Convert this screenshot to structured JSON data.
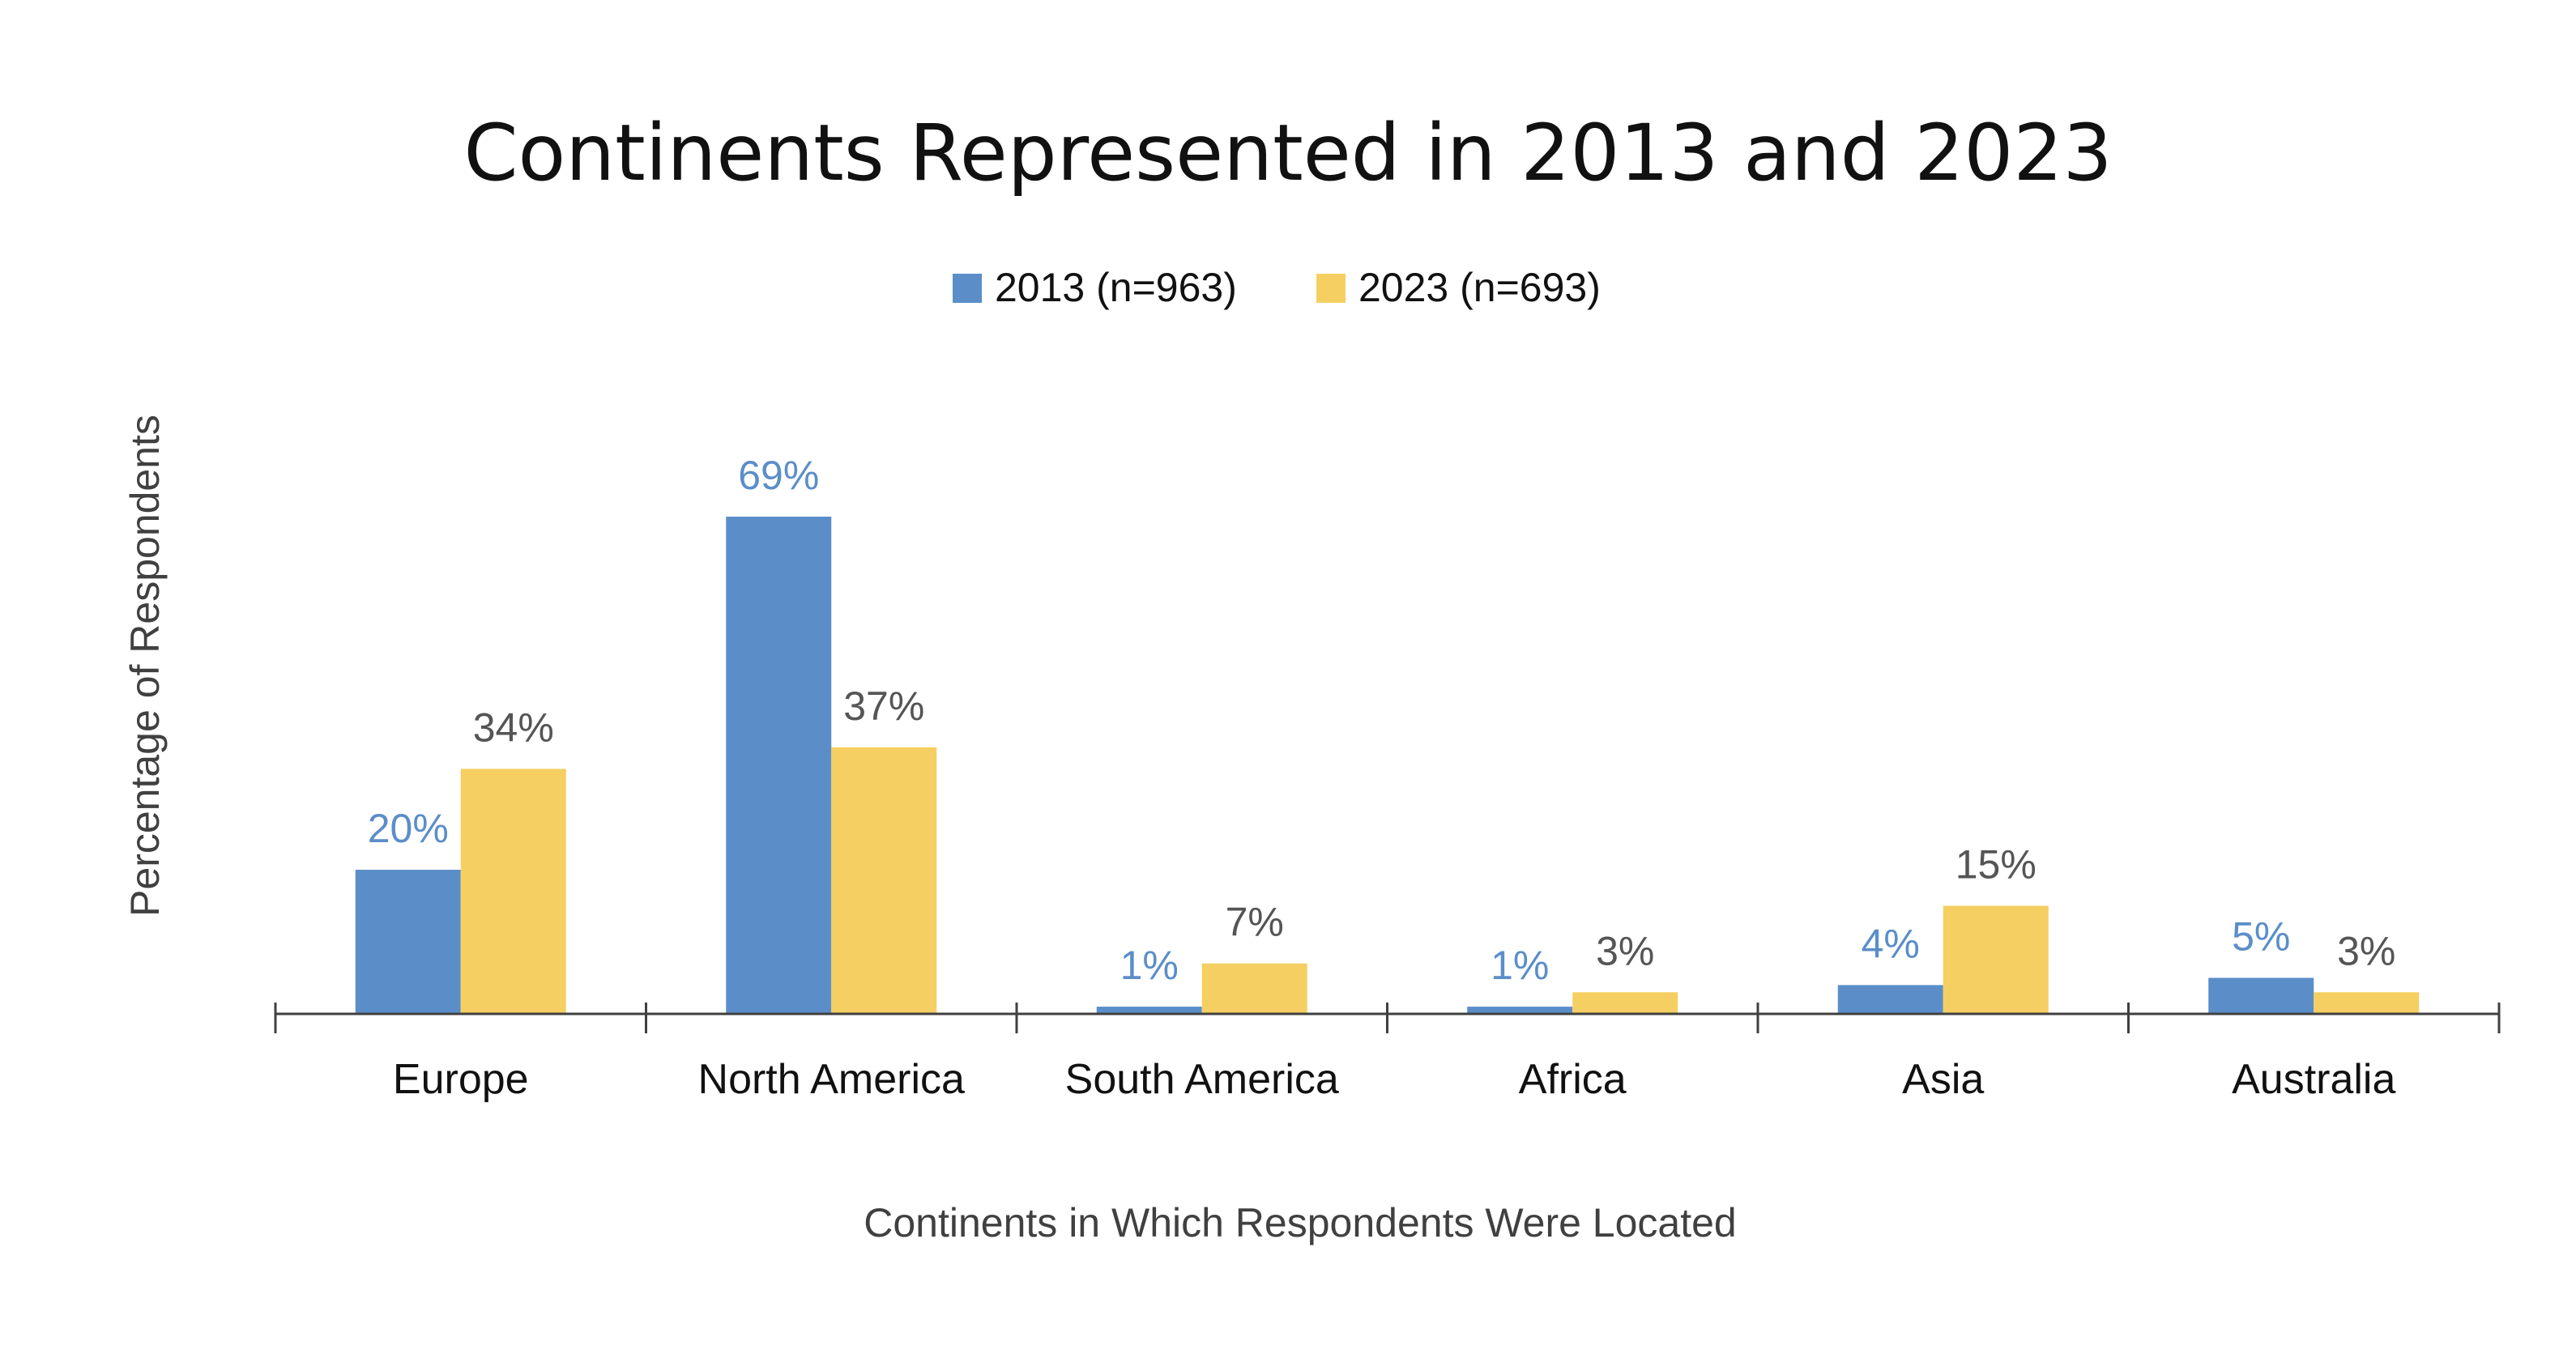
{
  "chart_data": {
    "type": "bar",
    "title": "Continents Represented in 2013 and 2023",
    "xlabel": "Continents in Which Respondents Were Located",
    "ylabel": "Percentage of Respondents",
    "categories": [
      "Europe",
      "North America",
      "South America",
      "Africa",
      "Asia",
      "Australia"
    ],
    "series": [
      {
        "name": "2013 (n=963)",
        "values": [
          20,
          69,
          1,
          1,
          4,
          5
        ],
        "labels": [
          "20%",
          "69%",
          "1%",
          "1%",
          "4%",
          "5%"
        ],
        "color": "#5B8EC9",
        "label_color": "#5B8EC9"
      },
      {
        "name": "2023 (n=693)",
        "values": [
          34,
          37,
          7,
          3,
          15,
          3
        ],
        "labels": [
          "34%",
          "37%",
          "7%",
          "3%",
          "15%",
          "3%"
        ],
        "color": "#F6CF62",
        "label_color": "#555555"
      }
    ],
    "ylim": [
      0,
      69
    ],
    "grid": false,
    "legend_position": "top-center",
    "axis_color": "#404040"
  }
}
